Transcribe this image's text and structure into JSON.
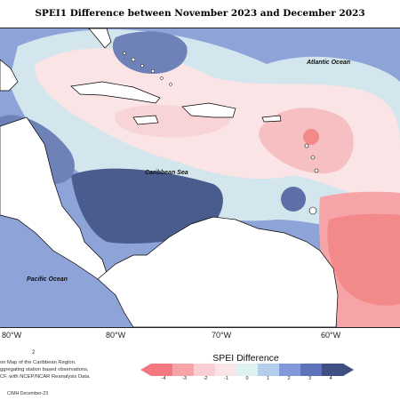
{
  "title": "SPEI1 Difference between November 2023 and December 2023",
  "map_labels": {
    "atlantic": "Atlantic Ocean",
    "caribbean": "Caribbean Sea",
    "pacific": "Pacific Ocean"
  },
  "axis_labels": [
    "80°W",
    "80°W",
    "70°W",
    "60°W"
  ],
  "footnote": {
    "line1": "on Map of the Caribbean Region.",
    "line2": "ggregating station based observations,",
    "line3": "CF, with NCEP/NCAR Reanalysis Data.",
    "small_mark": "2"
  },
  "legend": {
    "title": "SPEI Difference",
    "ticks": [
      "-4",
      "-3",
      "-2",
      "-1",
      "0",
      "1",
      "2",
      "3",
      "4"
    ],
    "colors": [
      "#f3797f",
      "#f6a4a8",
      "#f9cfd1",
      "#fbe4e5",
      "#dff0f0",
      "#b4cdec",
      "#7f99d9",
      "#5a73bb",
      "#3f4f82"
    ]
  },
  "credit": "CIMH December-23",
  "colors": {
    "land": "#ffffff",
    "ocean_mid_blue": "#8ea3d8",
    "dark_blue": "#4a5c8e",
    "light_pink": "#fbe4e5",
    "salmon": "#f38a8a"
  }
}
